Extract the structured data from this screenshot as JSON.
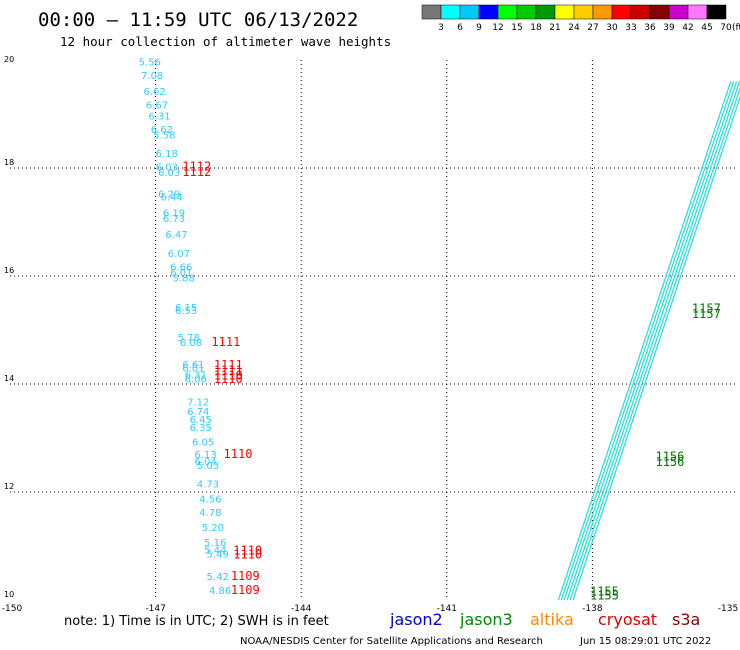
{
  "chart_data": {
    "type": "scatter",
    "title": "00:00 – 11:59 UTC 06/13/2022",
    "subtitle": "12 hour collection of altimeter wave heights",
    "xlim": [
      -150,
      -135
    ],
    "ylim": [
      10,
      20
    ],
    "x_ticks": [
      "-150",
      "-147",
      "-144",
      "-141",
      "-138",
      "-135"
    ],
    "y_ticks": [
      "10",
      "12",
      "14",
      "16",
      "18",
      "20"
    ],
    "grid": true,
    "colorbar": {
      "unit": "(ft)",
      "labels": [
        "3",
        "6",
        "9",
        "12",
        "15",
        "18",
        "21",
        "24",
        "27",
        "30",
        "33",
        "36",
        "39",
        "42",
        "45",
        "70"
      ],
      "colors": [
        "#777777",
        "#00ffff",
        "#00c8ff",
        "#0000ff",
        "#00ff00",
        "#00cc00",
        "#009900",
        "#ffff00",
        "#ffcc00",
        "#ff9900",
        "#ff0000",
        "#cc0000",
        "#880000",
        "#cc00cc",
        "#ff77ff",
        "#000000"
      ]
    },
    "series": [
      {
        "name": "cryosat",
        "kind": "swh",
        "color": "#33ccff",
        "points": [
          {
            "x": -147.35,
            "y": 19.9,
            "label": "5.56"
          },
          {
            "x": -147.3,
            "y": 19.65,
            "label": "7.08"
          },
          {
            "x": -147.25,
            "y": 19.35,
            "label": "6.62"
          },
          {
            "x": -147.2,
            "y": 19.1,
            "label": "6.67"
          },
          {
            "x": -147.15,
            "y": 18.9,
            "label": "6.31"
          },
          {
            "x": -147.1,
            "y": 18.65,
            "label": "6.62"
          },
          {
            "x": -147.05,
            "y": 18.55,
            "label": "5.58"
          },
          {
            "x": -147.0,
            "y": 18.2,
            "label": "6.18"
          },
          {
            "x": -147.0,
            "y": 17.95,
            "label": "6.03"
          },
          {
            "x": -146.95,
            "y": 17.85,
            "label": "6.03"
          },
          {
            "x": -146.95,
            "y": 17.45,
            "label": "6.29"
          },
          {
            "x": -146.9,
            "y": 17.4,
            "label": "6.44"
          },
          {
            "x": -146.85,
            "y": 17.1,
            "label": "6.19"
          },
          {
            "x": -146.85,
            "y": 17.0,
            "label": "6.73"
          },
          {
            "x": -146.8,
            "y": 16.7,
            "label": "6.47"
          },
          {
            "x": -146.75,
            "y": 16.35,
            "label": "6.07"
          },
          {
            "x": -146.7,
            "y": 16.1,
            "label": "6.66"
          },
          {
            "x": -146.7,
            "y": 16.0,
            "label": "6.01"
          },
          {
            "x": -146.65,
            "y": 15.9,
            "label": "5.88"
          },
          {
            "x": -146.6,
            "y": 15.35,
            "label": "6.15"
          },
          {
            "x": -146.6,
            "y": 15.3,
            "label": "6.53"
          },
          {
            "x": -146.55,
            "y": 14.8,
            "label": "5.78"
          },
          {
            "x": -146.5,
            "y": 14.7,
            "label": "6.08"
          },
          {
            "x": -146.45,
            "y": 14.3,
            "label": "6.61"
          },
          {
            "x": -146.45,
            "y": 14.23,
            "label": "6.01"
          },
          {
            "x": -146.4,
            "y": 14.1,
            "label": "6.31"
          },
          {
            "x": -146.4,
            "y": 14.03,
            "label": "6.06"
          },
          {
            "x": -146.35,
            "y": 13.6,
            "label": "7.12"
          },
          {
            "x": -146.35,
            "y": 13.43,
            "label": "6.74"
          },
          {
            "x": -146.3,
            "y": 13.28,
            "label": "6.45"
          },
          {
            "x": -146.3,
            "y": 13.13,
            "label": "6.35"
          },
          {
            "x": -146.25,
            "y": 12.86,
            "label": "6.05"
          },
          {
            "x": -146.2,
            "y": 12.63,
            "label": "6.13"
          },
          {
            "x": -146.2,
            "y": 12.5,
            "label": "6.04"
          },
          {
            "x": -146.15,
            "y": 12.43,
            "label": "5.03"
          },
          {
            "x": -146.15,
            "y": 12.08,
            "label": "4.73"
          },
          {
            "x": -146.1,
            "y": 11.81,
            "label": "4.56"
          },
          {
            "x": -146.1,
            "y": 11.56,
            "label": "4.78"
          },
          {
            "x": -146.05,
            "y": 11.28,
            "label": "5.20"
          },
          {
            "x": -146.0,
            "y": 11.0,
            "label": "5.16"
          },
          {
            "x": -146.0,
            "y": 10.86,
            "label": "5.44"
          },
          {
            "x": -145.95,
            "y": 10.79,
            "label": "5.49"
          },
          {
            "x": -145.95,
            "y": 10.37,
            "label": "5.42"
          },
          {
            "x": -145.9,
            "y": 10.11,
            "label": "4.86"
          }
        ]
      },
      {
        "name": "cryosat",
        "kind": "time",
        "color": "#ff0000",
        "points": [
          {
            "x": -146.45,
            "y": 17.95,
            "label": "1112"
          },
          {
            "x": -146.45,
            "y": 17.85,
            "label": "1112"
          },
          {
            "x": -145.85,
            "y": 14.7,
            "label": "1111"
          },
          {
            "x": -145.8,
            "y": 14.28,
            "label": "1111"
          },
          {
            "x": -145.8,
            "y": 14.18,
            "label": "1111"
          },
          {
            "x": -145.8,
            "y": 14.08,
            "label": "1110"
          },
          {
            "x": -145.8,
            "y": 14.02,
            "label": "1110"
          },
          {
            "x": -145.6,
            "y": 12.63,
            "label": "1110"
          },
          {
            "x": -145.4,
            "y": 10.84,
            "label": "1110"
          },
          {
            "x": -145.4,
            "y": 10.77,
            "label": "1110"
          },
          {
            "x": -145.45,
            "y": 10.37,
            "label": "1109"
          },
          {
            "x": -145.45,
            "y": 10.11,
            "label": "1109"
          }
        ]
      },
      {
        "name": "jason3",
        "kind": "swh",
        "color": "#33dddd",
        "track": {
          "from": [
            -138.55,
            10.0
          ],
          "to": [
            -135.0,
            19.6
          ],
          "parallel_lines": 6,
          "line_offset_deg": 0.06
        }
      },
      {
        "name": "jason3",
        "kind": "time",
        "color": "#007700",
        "points": [
          {
            "x": -138.05,
            "y": 10.08,
            "label": "1155"
          },
          {
            "x": -138.05,
            "y": 10.01,
            "label": "1155"
          },
          {
            "x": -136.7,
            "y": 12.58,
            "label": "1156"
          },
          {
            "x": -136.7,
            "y": 12.48,
            "label": "1156"
          },
          {
            "x": -135.95,
            "y": 15.32,
            "label": "1157"
          },
          {
            "x": -135.95,
            "y": 15.22,
            "label": "1157"
          }
        ]
      }
    ],
    "legend": {
      "placement": "bottom",
      "entries": [
        {
          "text": "jason2",
          "color": "#0000cc"
        },
        {
          "text": "jason3",
          "color": "#008800"
        },
        {
          "text": "altika",
          "color": "#ff8800"
        },
        {
          "text": "cryosat",
          "color": "#dd0000"
        },
        {
          "text": "s3a",
          "color": "#880000"
        }
      ]
    },
    "note": "note:  1) Time is in UTC;  2) SWH is in feet",
    "footer": "NOAA/NESDIS Center for Satellite Applications and Research",
    "generated": "Jun 15 08:29:01 UTC 2022"
  }
}
